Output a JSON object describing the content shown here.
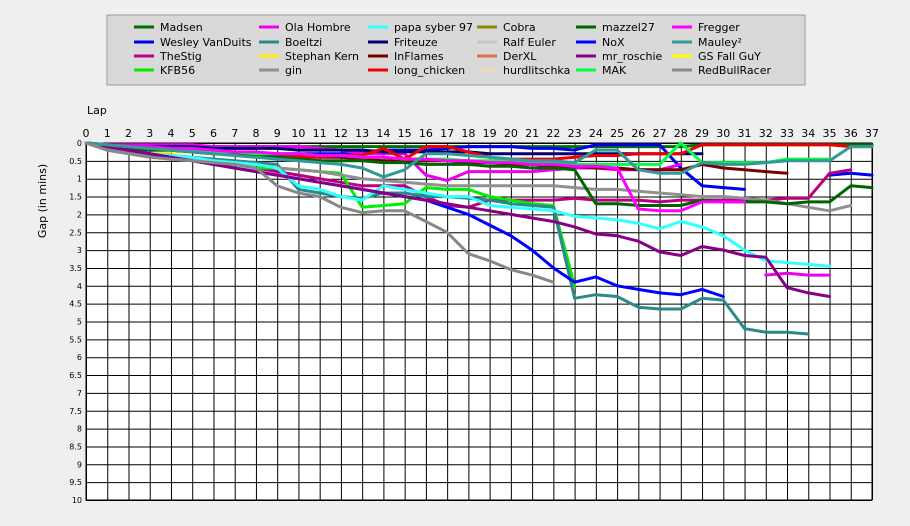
{
  "chart_data": {
    "type": "line",
    "xlabel": "Lap",
    "ylabel": "Gap (in mins)",
    "x_ticks": [
      0,
      1,
      2,
      3,
      4,
      5,
      6,
      7,
      8,
      9,
      10,
      11,
      12,
      13,
      14,
      15,
      16,
      17,
      18,
      19,
      20,
      21,
      22,
      23,
      24,
      25,
      26,
      27,
      28,
      29,
      30,
      31,
      32,
      33,
      34,
      35,
      36,
      37
    ],
    "y_ticks": [
      "0",
      "0.5",
      "1",
      "1.5",
      "2",
      "2.5",
      "3",
      "3.5",
      "4",
      "4.5",
      "5",
      "5.5",
      "6",
      "6.5",
      "7",
      "7.5",
      "8",
      "8.5",
      "9",
      "9.5",
      "10"
    ],
    "xlim": [
      0,
      37
    ],
    "ylim": [
      0,
      10
    ],
    "y_inverted": true,
    "x_axis_position": "top",
    "grid": true,
    "legend_position": "top",
    "legend_columns": 6,
    "series": [
      {
        "name": "Madsen",
        "color": "#007000",
        "values": [
          0,
          0.05,
          0.1,
          0.1,
          0.1,
          0.1,
          0.1,
          0.1,
          0.1,
          0.1,
          0.1,
          0.1,
          0.1,
          0.1,
          0.1,
          0.1,
          0.1,
          0.1,
          0.1,
          0.1,
          0.1,
          0.1,
          0.1,
          0.1,
          0.1,
          0.1,
          0.1,
          0.1,
          0.1,
          0.05,
          0.05,
          0.05,
          0.05,
          0.05,
          0.05,
          0.05,
          0.05,
          0.05
        ]
      },
      {
        "name": "Wesley VanDuits",
        "color": "#0000ee",
        "values": [
          0,
          0.1,
          0.15,
          0.2,
          0.2,
          0.25,
          0.3,
          0.3,
          0.3,
          0.3,
          0.3,
          0.3,
          0.3,
          0.25,
          0.2,
          0.2,
          0.2,
          0.15,
          0.1,
          0.1,
          0.1,
          0.15,
          0.15,
          0.2,
          0.05,
          0.05,
          0.05,
          0.05,
          0.7,
          1.2,
          1.25,
          1.3,
          null,
          null,
          null,
          0.9,
          0.85,
          0.9
        ]
      },
      {
        "name": "TheStig",
        "color": "#bb007f",
        "values": [
          0,
          0.15,
          0.25,
          0.3,
          0.35,
          0.4,
          0.5,
          0.6,
          0.7,
          0.8,
          0.9,
          1.0,
          1.1,
          1.2,
          1.2,
          1.2,
          1.5,
          1.75,
          1.8,
          1.6,
          1.6,
          1.6,
          1.6,
          1.55,
          1.6,
          1.6,
          1.6,
          1.65,
          1.6,
          1.6,
          1.6,
          1.6,
          1.6,
          1.55,
          1.55,
          0.85,
          0.75,
          null
        ]
      },
      {
        "name": "KFB56",
        "color": "#00ee00",
        "values": [
          0,
          0.2,
          0.3,
          0.35,
          0.4,
          0.45,
          0.55,
          0.6,
          0.7,
          0.7,
          0.75,
          0.8,
          0.85,
          1.8,
          1.75,
          1.7,
          1.25,
          1.3,
          1.3,
          1.5,
          1.6,
          1.7,
          1.75,
          4.0,
          null,
          null,
          null,
          null,
          null,
          null,
          null,
          null,
          null,
          null,
          null,
          null,
          null,
          null
        ]
      },
      {
        "name": "Ola Hombre",
        "color": "#ee00ee",
        "values": [
          0,
          0.05,
          0.05,
          0.05,
          0.05,
          0.05,
          0.1,
          0.1,
          0.1,
          0.1,
          0.1,
          0.15,
          0.2,
          0.3,
          0.3,
          0.3,
          0.9,
          1.05,
          0.8,
          0.8,
          0.8,
          0.8,
          0.75,
          0.7,
          0.7,
          0.75,
          0.75,
          0.75,
          0.6,
          null,
          null,
          null,
          3.7,
          3.65,
          3.7,
          3.7,
          null,
          null
        ]
      },
      {
        "name": "Boeltzi",
        "color": "#2a8a8a",
        "values": [
          0,
          0.1,
          0.2,
          0.3,
          0.35,
          0.4,
          0.45,
          0.5,
          0.55,
          0.6,
          1.3,
          1.4,
          1.5,
          1.55,
          1.4,
          1.4,
          1.5,
          1.5,
          1.55,
          1.6,
          1.7,
          1.75,
          1.8,
          4.35,
          4.25,
          4.3,
          4.6,
          4.65,
          4.65,
          4.35,
          4.4,
          5.2,
          5.3,
          5.3,
          5.35,
          null,
          null,
          null
        ]
      },
      {
        "name": "Stephan Kern",
        "color": "#ffee00",
        "values": [
          0,
          0.1,
          0.2,
          0.3,
          0.25,
          0.25,
          0.3,
          0.35,
          0.4,
          0.4,
          null,
          null,
          null,
          null,
          null,
          null,
          null,
          null,
          null,
          null,
          null,
          null,
          null,
          null,
          null,
          null,
          null,
          null,
          null,
          null,
          null,
          null,
          null,
          null,
          null,
          null,
          null,
          null
        ]
      },
      {
        "name": "gin",
        "color": "#909090",
        "values": [
          0,
          0.15,
          0.3,
          0.35,
          0.4,
          0.45,
          0.5,
          0.55,
          0.6,
          0.7,
          0.75,
          0.8,
          0.9,
          1.0,
          1.05,
          1.1,
          1.15,
          1.2,
          1.2,
          1.2,
          1.2,
          1.2,
          1.2,
          1.25,
          1.3,
          1.3,
          1.35,
          1.4,
          1.45,
          1.5,
          1.5,
          1.55,
          1.6,
          1.7,
          1.8,
          1.9,
          1.75,
          null
        ]
      },
      {
        "name": "papa syber 97",
        "color": "#33ffff",
        "values": [
          0,
          0.1,
          0.2,
          0.3,
          0.35,
          0.4,
          0.5,
          0.55,
          0.6,
          0.7,
          1.2,
          1.3,
          1.5,
          1.6,
          1.2,
          1.3,
          1.4,
          1.5,
          1.5,
          1.75,
          1.8,
          1.85,
          1.9,
          2.05,
          2.1,
          2.15,
          2.25,
          2.4,
          2.2,
          2.35,
          2.6,
          3.0,
          3.3,
          3.35,
          3.4,
          3.45,
          null,
          null
        ]
      },
      {
        "name": "Friteuze",
        "color": "#000070",
        "values": [
          0,
          0.05,
          0.1,
          0.1,
          0.1,
          0.1,
          0.15,
          0.15,
          0.15,
          0.15,
          0.2,
          0.2,
          0.2,
          0.2,
          0.25,
          0.25,
          0.25,
          0.25,
          0.25,
          0.3,
          0.3,
          0.3,
          0.3,
          0.3,
          0.3,
          0.3,
          0.3,
          0.3,
          0.3,
          0.3,
          null,
          null,
          null,
          null,
          null,
          null,
          null,
          null
        ]
      },
      {
        "name": "InFlames",
        "color": "#770000",
        "values": [
          0,
          0.05,
          0.1,
          0.15,
          0.2,
          0.2,
          0.25,
          0.25,
          0.3,
          0.35,
          0.35,
          0.4,
          0.4,
          0.45,
          0.5,
          0.5,
          0.5,
          0.5,
          0.55,
          0.55,
          0.6,
          0.6,
          0.65,
          0.65,
          0.7,
          0.7,
          0.75,
          0.75,
          0.75,
          0.6,
          0.7,
          0.75,
          0.8,
          0.85,
          null,
          null,
          null,
          null
        ]
      },
      {
        "name": "long_chicken",
        "color": "#ee0000",
        "values": [
          0,
          0.05,
          0.1,
          0.15,
          0.2,
          0.25,
          0.3,
          0.3,
          0.35,
          0.4,
          0.4,
          0.4,
          0.35,
          0.35,
          0.15,
          0.45,
          0.1,
          0.1,
          0.25,
          0.4,
          0.45,
          0.45,
          0.45,
          0.4,
          0.35,
          0.35,
          0.3,
          0.3,
          0.3,
          0.05,
          0.05,
          0.05,
          0.05,
          0.05,
          0.05,
          0.05,
          0.1,
          0.1
        ]
      },
      {
        "name": "Cobra",
        "color": "#8b8b00",
        "values": []
      },
      {
        "name": "Ralf Euler",
        "color": "#c8c8c8",
        "values": []
      },
      {
        "name": "DerXL",
        "color": "#e07050",
        "values": []
      },
      {
        "name": "hurdlitschka",
        "color": "#f0dab4",
        "values": []
      },
      {
        "name": "mazzel27",
        "color": "#006400",
        "values": [
          0,
          0.1,
          0.15,
          0.2,
          0.2,
          0.25,
          0.3,
          0.3,
          0.35,
          0.4,
          0.45,
          0.5,
          0.5,
          0.5,
          0.55,
          0.55,
          0.6,
          0.6,
          0.6,
          0.65,
          0.65,
          0.7,
          0.7,
          0.75,
          1.7,
          1.7,
          1.75,
          1.75,
          1.75,
          1.6,
          1.65,
          1.65,
          1.65,
          1.7,
          1.65,
          1.65,
          1.2,
          1.25
        ]
      },
      {
        "name": "NoX",
        "color": "#0000ff",
        "values": [
          0,
          0.1,
          0.2,
          0.3,
          0.4,
          0.5,
          0.6,
          0.7,
          0.8,
          0.9,
          1.0,
          1.1,
          1.2,
          1.3,
          1.4,
          1.5,
          1.6,
          1.8,
          2.0,
          2.3,
          2.6,
          3.0,
          3.5,
          3.9,
          3.75,
          4.0,
          4.1,
          4.2,
          4.25,
          4.1,
          4.3,
          null,
          null,
          null,
          null,
          null,
          null,
          null
        ]
      },
      {
        "name": "mr_roschie",
        "color": "#880088",
        "values": [
          0,
          0.1,
          0.2,
          0.3,
          0.4,
          0.5,
          0.6,
          0.7,
          0.8,
          0.9,
          1.0,
          1.1,
          1.2,
          1.3,
          1.4,
          1.5,
          1.6,
          1.7,
          1.8,
          1.9,
          2.0,
          2.1,
          2.2,
          2.35,
          2.55,
          2.6,
          2.75,
          3.05,
          3.15,
          2.9,
          3.0,
          3.15,
          3.2,
          4.05,
          4.2,
          4.3,
          null,
          null
        ]
      },
      {
        "name": "MAK",
        "color": "#00ff44",
        "values": [
          0,
          0.05,
          0.1,
          0.15,
          0.15,
          0.2,
          0.25,
          0.25,
          0.3,
          0.3,
          0.3,
          0.35,
          0.35,
          0.4,
          0.4,
          0.45,
          0.45,
          0.45,
          0.5,
          0.5,
          0.5,
          0.55,
          0.55,
          0.6,
          0.6,
          0.6,
          0.6,
          0.6,
          0.0,
          0.55,
          0.55,
          0.55,
          0.55,
          0.45,
          0.45,
          0.45,
          null,
          null
        ]
      },
      {
        "name": "Fregger",
        "color": "#ff00ff",
        "values": [
          0,
          0.05,
          0.1,
          0.1,
          0.15,
          0.15,
          0.2,
          0.25,
          0.25,
          0.3,
          0.3,
          0.35,
          0.35,
          0.4,
          0.4,
          0.45,
          0.45,
          0.5,
          0.5,
          0.55,
          0.55,
          0.6,
          0.6,
          0.65,
          0.65,
          0.7,
          1.85,
          1.9,
          1.9,
          1.65,
          1.65,
          1.65,
          null,
          null,
          null,
          null,
          null,
          null
        ]
      },
      {
        "name": "Mauley²",
        "color": "#339999",
        "values": [
          0,
          0.05,
          0.1,
          0.15,
          0.2,
          0.25,
          0.3,
          0.35,
          0.4,
          0.45,
          0.5,
          0.55,
          0.6,
          0.7,
          0.95,
          0.75,
          0.3,
          0.3,
          0.35,
          0.4,
          0.45,
          0.5,
          0.5,
          0.55,
          0.2,
          0.2,
          0.75,
          0.85,
          0.85,
          0.55,
          0.6,
          0.6,
          0.55,
          0.5,
          0.5,
          0.5,
          0.1,
          0.1
        ]
      },
      {
        "name": "GS Fall GuY",
        "color": "#ffff00",
        "values": []
      },
      {
        "name": "RedBullRacer",
        "color": "#888888",
        "values": [
          0,
          0.2,
          0.3,
          0.4,
          0.45,
          0.5,
          0.55,
          0.6,
          0.7,
          1.2,
          1.4,
          1.5,
          1.8,
          1.95,
          1.9,
          1.9,
          2.2,
          2.5,
          3.1,
          3.3,
          3.55,
          3.7,
          3.9,
          null,
          null,
          null,
          null,
          null,
          null,
          null,
          null,
          null,
          null,
          null,
          null,
          null,
          null,
          null
        ]
      }
    ]
  }
}
